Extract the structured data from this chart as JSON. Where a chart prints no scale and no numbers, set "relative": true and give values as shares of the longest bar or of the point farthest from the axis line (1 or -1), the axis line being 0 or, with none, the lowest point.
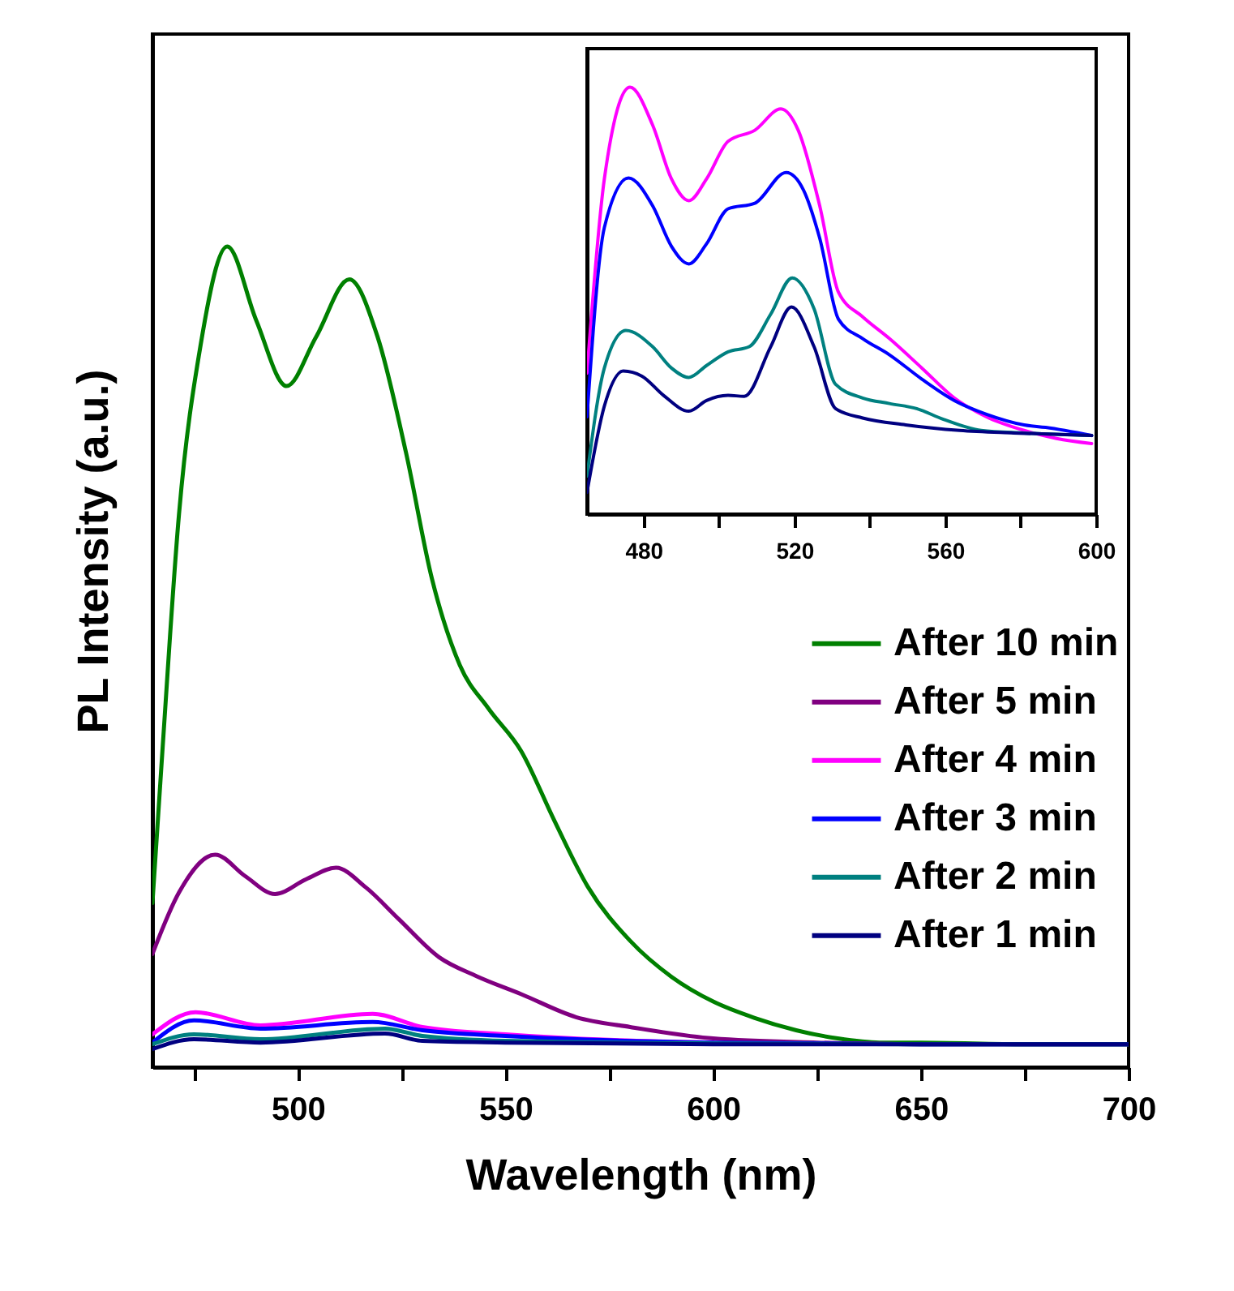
{
  "chart_data": [
    {
      "type": "line",
      "relative": true,
      "xlabel": "Wavelength (nm)",
      "ylabel": "PL Intensity (a.u.)",
      "xlim": [
        465,
        700
      ],
      "xticks": [
        {
          "value": 475,
          "label": null
        },
        500,
        {
          "value": 525,
          "label": null
        },
        550,
        {
          "value": 575,
          "label": null
        },
        600,
        {
          "value": 625,
          "label": null
        },
        650,
        {
          "value": 675,
          "label": null
        },
        700
      ],
      "legend": "right",
      "series": [
        {
          "name": "After 10 min",
          "color": "#008000",
          "x": [
            465,
            467.4,
            471.4,
            476.6,
            483,
            490,
            497.3,
            504.4,
            512.4,
            519.2,
            526,
            532.3,
            539,
            545.9,
            553.8,
            561.8,
            569.8,
            580,
            590,
            600,
            610,
            620,
            630,
            640,
            650,
            675,
            700
          ],
          "values": [
            0.2,
            0.385,
            0.674,
            0.88,
            1.0,
            0.91,
            0.83,
            0.89,
            0.96,
            0.89,
            0.75,
            0.595,
            0.49,
            0.437,
            0.385,
            0.3,
            0.22,
            0.154,
            0.11,
            0.08,
            0.06,
            0.045,
            0.035,
            0.03,
            0.03,
            0.028,
            0.028
          ]
        },
        {
          "name": "After 5 min",
          "color": "#800080",
          "x": [
            465,
            471.4,
            480.1,
            487.3,
            494.5,
            502,
            509.2,
            516.4,
            524.4,
            534,
            543,
            553.8,
            567,
            580,
            600,
            625,
            650,
            700
          ],
          "values": [
            0.138,
            0.213,
            0.259,
            0.233,
            0.211,
            0.229,
            0.243,
            0.219,
            0.18,
            0.134,
            0.111,
            0.089,
            0.061,
            0.049,
            0.035,
            0.03,
            0.028,
            0.028
          ]
        },
        {
          "name": "After 4 min",
          "color": "#ff00ff",
          "x": [
            465,
            475.4,
            491,
            518,
            530,
            550,
            600
          ],
          "values": [
            0.04,
            0.067,
            0.051,
            0.065,
            0.049,
            0.04,
            0.03
          ]
        },
        {
          "name": "After 3 min",
          "color": "#0000ff",
          "x": [
            465,
            475,
            491,
            518,
            530,
            550,
            600,
            650,
            700
          ],
          "values": [
            0.03,
            0.057,
            0.047,
            0.055,
            0.045,
            0.038,
            0.03,
            0.028,
            0.028
          ]
        },
        {
          "name": "After 2 min",
          "color": "#008080",
          "x": [
            465,
            475,
            491,
            521,
            530,
            550,
            600,
            650,
            700
          ],
          "values": [
            0.028,
            0.04,
            0.034,
            0.047,
            0.038,
            0.032,
            0.029,
            0.028,
            0.028
          ]
        },
        {
          "name": "After 1 min",
          "color": "#000080",
          "x": [
            465,
            475,
            491,
            521,
            530,
            550,
            600,
            650,
            700
          ],
          "values": [
            0.022,
            0.034,
            0.03,
            0.041,
            0.032,
            0.03,
            0.028,
            0.028,
            0.028
          ]
        }
      ]
    },
    {
      "type": "line",
      "relative": true,
      "xlim": [
        465,
        600
      ],
      "xticks": [
        480,
        {
          "value": 500,
          "label": null
        },
        520,
        {
          "value": 540,
          "label": null
        },
        560,
        {
          "value": 580,
          "label": null
        },
        600
      ],
      "series": [
        {
          "color": "#ff00ff",
          "x": [
            465,
            469.6,
            476.4,
            482.4,
            487.4,
            492,
            496.7,
            502.4,
            509.5,
            516.4,
            521,
            526.7,
            531.7,
            538.1,
            545.2,
            553.8,
            562.4,
            570.9,
            580.9,
            589.5,
            598.8
          ],
          "values": [
            0.33,
            0.785,
            1.0,
            0.911,
            0.785,
            0.734,
            0.785,
            0.873,
            0.899,
            0.949,
            0.899,
            0.722,
            0.519,
            0.462,
            0.411,
            0.342,
            0.272,
            0.228,
            0.196,
            0.177,
            0.165
          ]
        },
        {
          "color": "#0000ff",
          "x": [
            465,
            469.6,
            476,
            482.4,
            487.4,
            492,
            496.7,
            502.4,
            509.5,
            517.8,
            522.4,
            526.7,
            531.7,
            538.1,
            545.2,
            553.8,
            562.4,
            570.9,
            580.9,
            586.6,
            598.8
          ],
          "values": [
            0.228,
            0.671,
            0.787,
            0.722,
            0.627,
            0.586,
            0.633,
            0.715,
            0.728,
            0.8,
            0.759,
            0.646,
            0.456,
            0.411,
            0.373,
            0.316,
            0.266,
            0.234,
            0.209,
            0.203,
            0.184
          ]
        },
        {
          "color": "#008080",
          "x": [
            465,
            469.6,
            475.3,
            482.4,
            487.4,
            492,
            496.7,
            502.4,
            508,
            513.7,
            519.4,
            525.2,
            530.9,
            538.1,
            545.2,
            552.4,
            559.5,
            569.5,
            580.9,
            598.8
          ],
          "values": [
            0.089,
            0.342,
            0.43,
            0.392,
            0.342,
            0.32,
            0.348,
            0.38,
            0.392,
            0.468,
            0.553,
            0.481,
            0.304,
            0.272,
            0.259,
            0.247,
            0.222,
            0.196,
            0.19,
            0.184
          ]
        },
        {
          "color": "#000080",
          "x": [
            465,
            469.6,
            474.6,
            479.6,
            485.3,
            492,
            496.7,
            502.4,
            506.7,
            513.7,
            519.2,
            525.2,
            530.9,
            538.1,
            549.5,
            563.8,
            578.1,
            598.8
          ],
          "values": [
            0.051,
            0.253,
            0.335,
            0.323,
            0.278,
            0.241,
            0.266,
            0.278,
            0.276,
            0.392,
            0.485,
            0.392,
            0.247,
            0.225,
            0.209,
            0.196,
            0.19,
            0.184
          ]
        }
      ]
    }
  ]
}
